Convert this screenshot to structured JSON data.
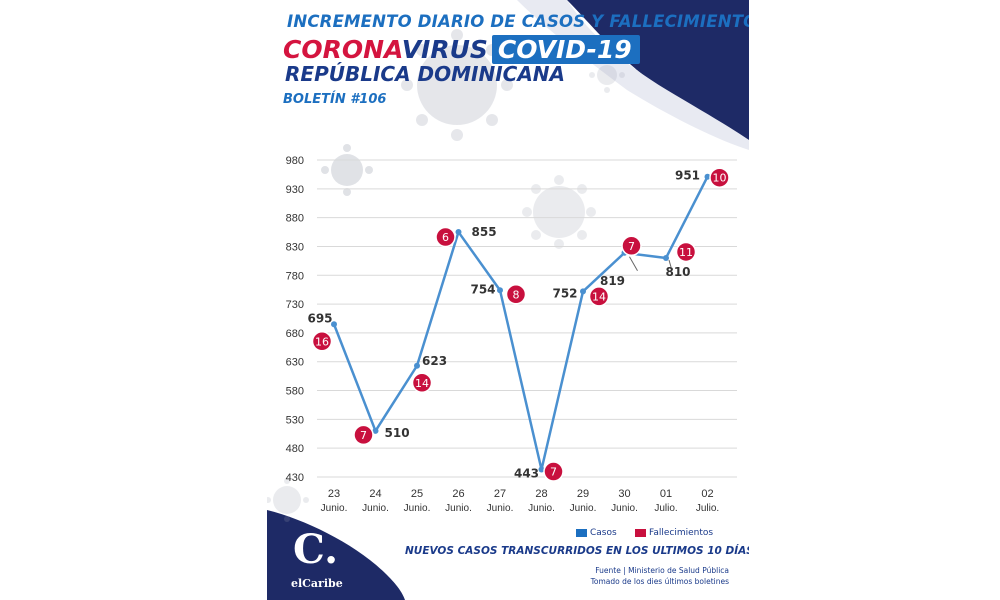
{
  "header": {
    "line1": "INCREMENTO DIARIO DE CASOS Y FALLECIMIENTOS",
    "corona": "CORONA",
    "virus": "VIRUS",
    "covid": "COVID-19",
    "country": "REPÚBLICA DOMINICANA",
    "bulletin": "BOLETÍN #106"
  },
  "footer": {
    "title": "NUEVOS CASOS TRANSCURRIDOS EN LOS ULTIMOS 10 DÍAS",
    "source1": "Fuente | Ministerio de Salud Pública",
    "source2": "Tomado de  los dies últimos boletines",
    "logo_mark": "C.",
    "logo_text": "elCaribe"
  },
  "colors": {
    "line": "#4a90d0",
    "deaths_badge": "#c8103e",
    "navy": "#1e2a66",
    "grid": "#d9d9d9"
  },
  "chart_data": {
    "type": "line",
    "categories": [
      "23",
      "24",
      "25",
      "26",
      "27",
      "28",
      "29",
      "30",
      "01",
      "02"
    ],
    "category_months": [
      "Junio.",
      "Junio.",
      "Junio.",
      "Junio.",
      "Junio.",
      "Junio.",
      "Junio.",
      "Junio.",
      "Julio.",
      "Julio."
    ],
    "series": [
      {
        "name": "Casos",
        "values": [
          695,
          510,
          623,
          855,
          754,
          443,
          752,
          819,
          810,
          951
        ]
      },
      {
        "name": "Fallecimientos",
        "values": [
          16,
          7,
          14,
          6,
          8,
          7,
          14,
          7,
          11,
          10
        ]
      }
    ],
    "yticks": [
      "980",
      "930",
      "880",
      "830",
      "780",
      "730",
      "680",
      "630",
      "580",
      "530",
      "480",
      "430"
    ],
    "ylim": [
      430,
      980
    ],
    "grid": true,
    "legend_position": "bottom-right",
    "title": "",
    "xlabel": "",
    "ylabel": ""
  }
}
